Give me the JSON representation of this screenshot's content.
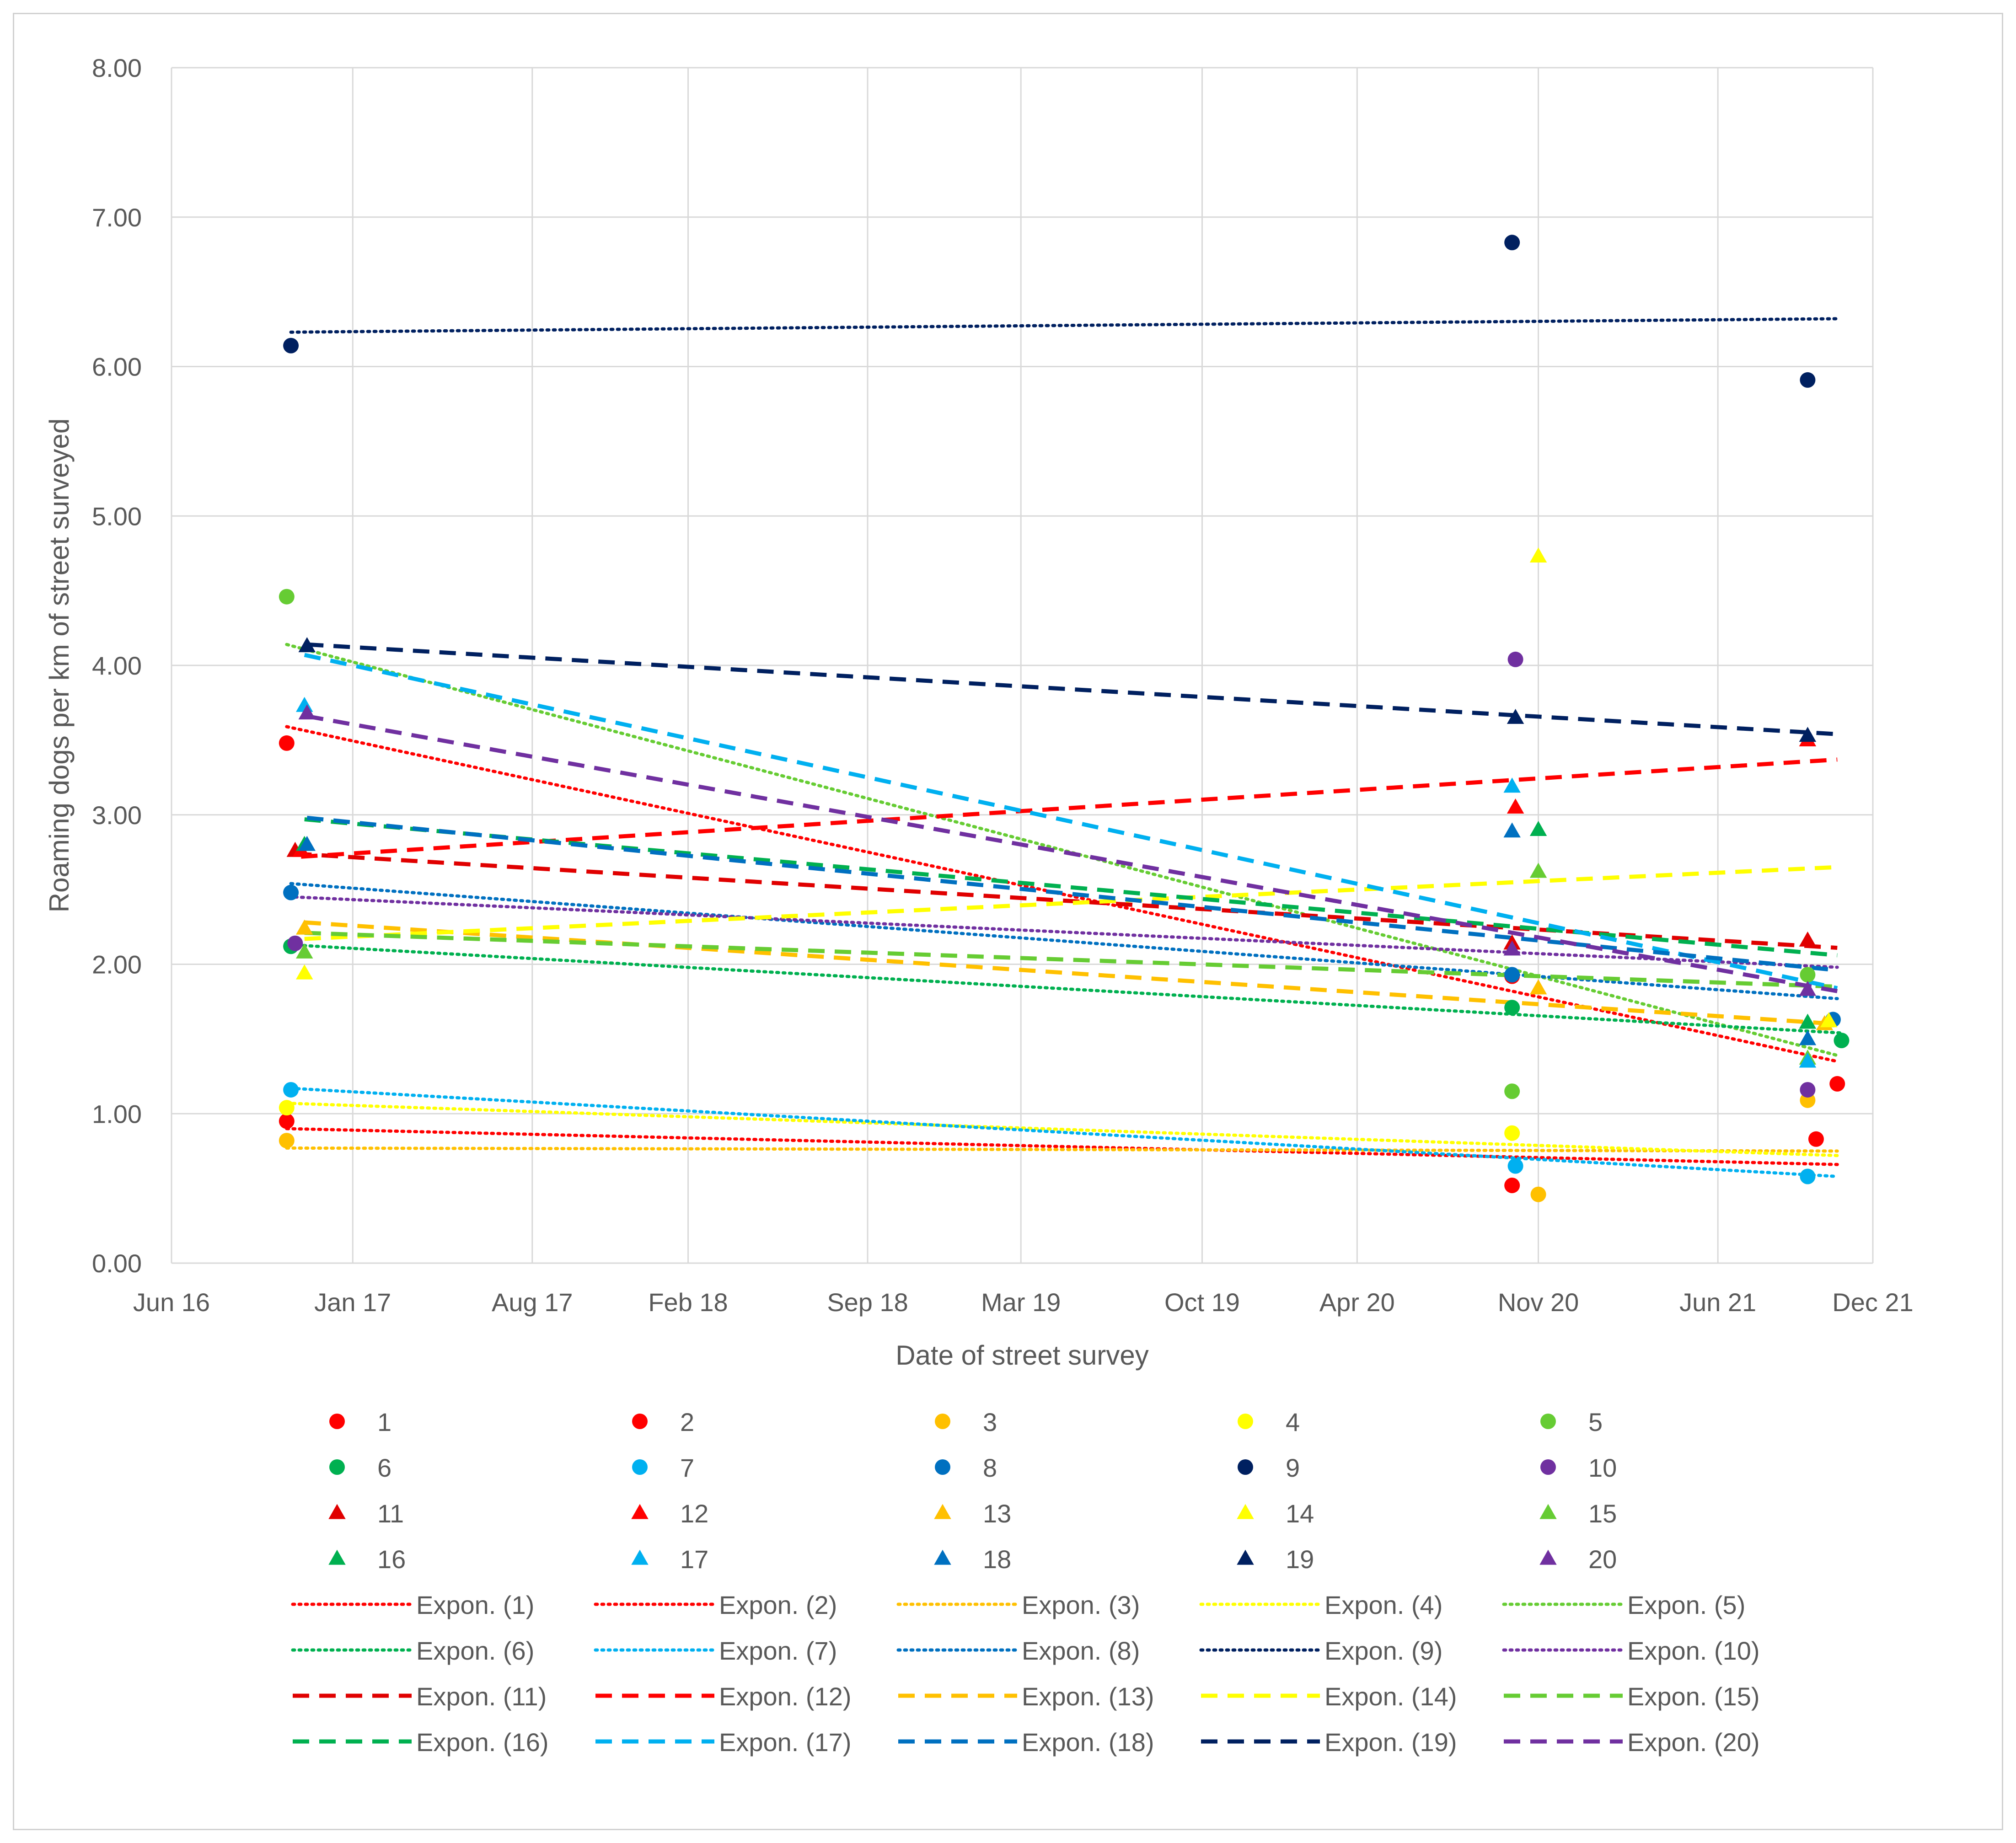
{
  "chart_data": {
    "type": "scatter",
    "title": "",
    "xlabel": "Date of street survey",
    "ylabel": "Roaming dogs per km of street surveyed",
    "x_ticks": [
      "Jun 16",
      "Jan 17",
      "Aug 17",
      "Feb 18",
      "Sep 18",
      "Mar 19",
      "Oct 19",
      "Apr 20",
      "Nov 20",
      "Jun 21",
      "Dec 21"
    ],
    "x_tick_dates": [
      "2016-06-01",
      "2017-01-01",
      "2017-08-01",
      "2018-02-01",
      "2018-09-01",
      "2019-03-01",
      "2019-10-01",
      "2020-04-01",
      "2020-11-01",
      "2021-06-01",
      "2021-12-01"
    ],
    "xlim": [
      "2016-06-01",
      "2021-12-01"
    ],
    "y_ticks": [
      "0.00",
      "1.00",
      "2.00",
      "3.00",
      "4.00",
      "5.00",
      "6.00",
      "7.00",
      "8.00"
    ],
    "ylim": [
      0,
      8
    ],
    "grid": true,
    "legend_position": "bottom",
    "trendline_type": "Expon.",
    "series": [
      {
        "name": "1",
        "color": "#ff0000",
        "marker": "circle",
        "trend": "dotted",
        "trend_label": "Expon. (1)",
        "points": [
          [
            "2016-10-15",
            0.95
          ],
          [
            "2020-10-01",
            0.52
          ],
          [
            "2021-09-25",
            0.83
          ]
        ]
      },
      {
        "name": "2",
        "color": "#ff0000",
        "marker": "circle",
        "trend": "dotted",
        "trend_label": "Expon. (2)",
        "points": [
          [
            "2016-10-15",
            3.48
          ],
          [
            "2020-10-01",
            1.92
          ],
          [
            "2021-10-20",
            1.2
          ]
        ]
      },
      {
        "name": "3",
        "color": "#ffc000",
        "marker": "circle",
        "trend": "dotted",
        "trend_label": "Expon. (3)",
        "points": [
          [
            "2016-10-15",
            0.82
          ],
          [
            "2020-11-01",
            0.46
          ],
          [
            "2021-09-15",
            1.09
          ]
        ]
      },
      {
        "name": "4",
        "color": "#ffff00",
        "marker": "circle",
        "trend": "dotted",
        "trend_label": "Expon. (4)",
        "points": [
          [
            "2016-10-15",
            1.04
          ],
          [
            "2020-10-01",
            0.87
          ],
          [
            "2021-09-15",
            0.58
          ]
        ]
      },
      {
        "name": "5",
        "color": "#66cc33",
        "marker": "circle",
        "trend": "dotted",
        "trend_label": "Expon. (5)",
        "points": [
          [
            "2016-10-15",
            4.46
          ],
          [
            "2020-10-01",
            1.15
          ],
          [
            "2021-09-15",
            1.93
          ]
        ]
      },
      {
        "name": "6",
        "color": "#00b050",
        "marker": "circle",
        "trend": "dotted",
        "trend_label": "Expon. (6)",
        "points": [
          [
            "2016-10-20",
            2.12
          ],
          [
            "2020-10-01",
            1.71
          ],
          [
            "2021-10-25",
            1.49
          ]
        ]
      },
      {
        "name": "7",
        "color": "#00b0f0",
        "marker": "circle",
        "trend": "dotted",
        "trend_label": "Expon. (7)",
        "points": [
          [
            "2016-10-20",
            1.16
          ],
          [
            "2020-10-05",
            0.65
          ],
          [
            "2021-09-15",
            0.58
          ]
        ]
      },
      {
        "name": "8",
        "color": "#0070c0",
        "marker": "circle",
        "trend": "dotted",
        "trend_label": "Expon. (8)",
        "points": [
          [
            "2016-10-20",
            2.48
          ],
          [
            "2020-10-01",
            1.93
          ],
          [
            "2021-10-15",
            1.63
          ]
        ]
      },
      {
        "name": "9",
        "color": "#002060",
        "marker": "circle",
        "trend": "dotted",
        "trend_label": "Expon. (9)",
        "points": [
          [
            "2016-10-20",
            6.14
          ],
          [
            "2020-10-01",
            6.83
          ],
          [
            "2021-09-15",
            5.91
          ]
        ]
      },
      {
        "name": "10",
        "color": "#7030a0",
        "marker": "circle",
        "trend": "dotted",
        "trend_label": "Expon. (10)",
        "points": [
          [
            "2016-10-25",
            2.14
          ],
          [
            "2020-10-05",
            4.04
          ],
          [
            "2021-09-15",
            1.16
          ]
        ]
      },
      {
        "name": "11",
        "color": "#e00000",
        "marker": "triangle",
        "trend": "dashed",
        "trend_label": "Expon. (11)",
        "points": [
          [
            "2016-10-25",
            2.76
          ],
          [
            "2020-10-01",
            2.14
          ],
          [
            "2021-09-15",
            2.16
          ]
        ]
      },
      {
        "name": "12",
        "color": "#ff0000",
        "marker": "triangle",
        "trend": "dashed",
        "trend_label": "Expon. (12)",
        "points": [
          [
            "2016-11-01",
            2.76
          ],
          [
            "2020-10-05",
            3.05
          ],
          [
            "2021-09-15",
            3.5
          ]
        ]
      },
      {
        "name": "13",
        "color": "#ffc000",
        "marker": "triangle",
        "trend": "dashed",
        "trend_label": "Expon. (13)",
        "points": [
          [
            "2016-11-05",
            2.24
          ],
          [
            "2020-11-01",
            1.84
          ],
          [
            "2021-10-05",
            1.6
          ]
        ]
      },
      {
        "name": "14",
        "color": "#ffff00",
        "marker": "triangle",
        "trend": "dashed",
        "trend_label": "Expon. (14)",
        "points": [
          [
            "2016-11-05",
            1.94
          ],
          [
            "2020-11-01",
            4.73
          ],
          [
            "2021-10-10",
            1.62
          ]
        ]
      },
      {
        "name": "15",
        "color": "#66cc33",
        "marker": "triangle",
        "trend": "dashed",
        "trend_label": "Expon. (15)",
        "points": [
          [
            "2016-11-05",
            2.08
          ],
          [
            "2020-11-01",
            2.62
          ],
          [
            "2021-09-15",
            1.37
          ]
        ]
      },
      {
        "name": "16",
        "color": "#00b050",
        "marker": "triangle",
        "trend": "dashed",
        "trend_label": "Expon. (16)",
        "points": [
          [
            "2016-11-05",
            2.8
          ],
          [
            "2020-11-01",
            2.9
          ],
          [
            "2021-09-15",
            1.61
          ]
        ]
      },
      {
        "name": "17",
        "color": "#00b0f0",
        "marker": "triangle",
        "trend": "dashed",
        "trend_label": "Expon. (17)",
        "points": [
          [
            "2016-11-05",
            3.73
          ],
          [
            "2020-10-01",
            3.19
          ],
          [
            "2021-09-15",
            1.35
          ]
        ]
      },
      {
        "name": "18",
        "color": "#0070c0",
        "marker": "triangle",
        "trend": "dashed",
        "trend_label": "Expon. (18)",
        "points": [
          [
            "2016-11-08",
            2.8
          ],
          [
            "2020-10-01",
            2.89
          ],
          [
            "2021-09-15",
            1.5
          ]
        ]
      },
      {
        "name": "19",
        "color": "#002060",
        "marker": "triangle",
        "trend": "dashed",
        "trend_label": "Expon. (19)",
        "points": [
          [
            "2016-11-08",
            4.13
          ],
          [
            "2020-10-05",
            3.65
          ],
          [
            "2021-09-15",
            3.53
          ]
        ]
      },
      {
        "name": "20",
        "color": "#7030a0",
        "marker": "triangle",
        "trend": "dashed",
        "trend_label": "Expon. (20)",
        "points": [
          [
            "2016-11-08",
            3.68
          ],
          [
            "2020-10-01",
            2.1
          ],
          [
            "2021-09-15",
            1.83
          ]
        ]
      }
    ],
    "trendlines": [
      {
        "series": "1",
        "start": [
          "2016-10-15",
          0.9
        ],
        "end": [
          "2021-10-20",
          0.66
        ]
      },
      {
        "series": "2",
        "start": [
          "2016-10-15",
          3.59
        ],
        "end": [
          "2021-10-20",
          1.35
        ]
      },
      {
        "series": "3",
        "start": [
          "2016-10-15",
          0.77
        ],
        "end": [
          "2021-10-20",
          0.75
        ]
      },
      {
        "series": "4",
        "start": [
          "2016-10-15",
          1.07
        ],
        "end": [
          "2021-10-20",
          0.72
        ]
      },
      {
        "series": "5",
        "start": [
          "2016-10-15",
          4.14
        ],
        "end": [
          "2021-10-20",
          1.39
        ]
      },
      {
        "series": "6",
        "start": [
          "2016-10-20",
          2.13
        ],
        "end": [
          "2021-10-25",
          1.54
        ]
      },
      {
        "series": "7",
        "start": [
          "2016-10-20",
          1.17
        ],
        "end": [
          "2021-10-20",
          0.58
        ]
      },
      {
        "series": "8",
        "start": [
          "2016-10-20",
          2.54
        ],
        "end": [
          "2021-10-20",
          1.77
        ]
      },
      {
        "series": "9",
        "start": [
          "2016-10-20",
          6.23
        ],
        "end": [
          "2021-10-20",
          6.32
        ]
      },
      {
        "series": "10",
        "start": [
          "2016-10-25",
          2.45
        ],
        "end": [
          "2021-10-20",
          1.98
        ]
      },
      {
        "series": "11",
        "start": [
          "2016-10-25",
          2.74
        ],
        "end": [
          "2021-10-20",
          2.11
        ]
      },
      {
        "series": "12",
        "start": [
          "2016-11-01",
          2.72
        ],
        "end": [
          "2021-10-20",
          3.37
        ]
      },
      {
        "series": "13",
        "start": [
          "2016-11-05",
          2.28
        ],
        "end": [
          "2021-10-20",
          1.6
        ]
      },
      {
        "series": "14",
        "start": [
          "2016-11-05",
          2.17
        ],
        "end": [
          "2021-10-20",
          2.65
        ]
      },
      {
        "series": "15",
        "start": [
          "2016-11-05",
          2.21
        ],
        "end": [
          "2021-10-20",
          1.85
        ]
      },
      {
        "series": "16",
        "start": [
          "2016-11-05",
          2.97
        ],
        "end": [
          "2021-10-20",
          2.06
        ]
      },
      {
        "series": "17",
        "start": [
          "2016-11-05",
          4.07
        ],
        "end": [
          "2021-10-20",
          1.84
        ]
      },
      {
        "series": "18",
        "start": [
          "2016-11-08",
          2.98
        ],
        "end": [
          "2021-10-20",
          1.96
        ]
      },
      {
        "series": "19",
        "start": [
          "2016-11-08",
          4.14
        ],
        "end": [
          "2021-10-20",
          3.54
        ]
      },
      {
        "series": "20",
        "start": [
          "2016-11-08",
          3.66
        ],
        "end": [
          "2021-10-20",
          1.82
        ]
      }
    ]
  }
}
